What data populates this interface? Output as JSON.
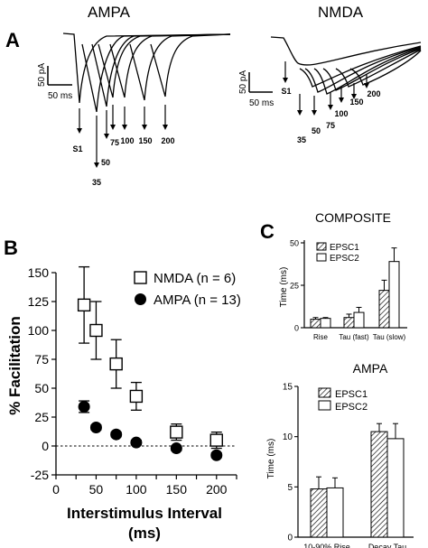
{
  "panel_labels": {
    "a": "A",
    "b": "B",
    "c": "C"
  },
  "panel_a": {
    "ampa": {
      "title": "AMPA",
      "scale_current": "50 pA",
      "scale_time": "50 ms",
      "stim_labels": [
        "S1",
        "35",
        "50",
        "75",
        "100",
        "150",
        "200"
      ]
    },
    "nmda": {
      "title": "NMDA",
      "scale_current": "50 pA",
      "scale_time": "50 ms",
      "stim_labels": [
        "S1",
        "35",
        "50",
        "75",
        "100",
        "150",
        "200"
      ]
    }
  },
  "chart_data": [
    {
      "id": "facilitation",
      "type": "scatter",
      "title": "",
      "xlabel": "Interstimulus Interval (ms)",
      "ylabel": "% Facilitation",
      "xlim": [
        0,
        225
      ],
      "ylim": [
        -25,
        150
      ],
      "xticks": [
        "0",
        "25",
        "50",
        "75",
        "100",
        "125",
        "150",
        "175",
        "200",
        "225"
      ],
      "yticks": [
        "-25",
        "0",
        "25",
        "50",
        "75",
        "100",
        "125",
        "150"
      ],
      "legend": {
        "placement": "top-right"
      },
      "series": [
        {
          "name": "NMDA (n = 6)",
          "marker": "open-square",
          "x": [
            35,
            50,
            75,
            100,
            150,
            200
          ],
          "y": [
            122,
            100,
            71,
            43,
            12,
            5
          ],
          "err": [
            33,
            25,
            21,
            12,
            7,
            7
          ]
        },
        {
          "name": "AMPA (n = 13)",
          "marker": "filled-circle",
          "x": [
            35,
            50,
            75,
            100,
            150,
            200
          ],
          "y": [
            34,
            16,
            10,
            3,
            -2,
            -8
          ],
          "err": [
            5,
            2,
            2,
            2,
            2,
            2
          ]
        }
      ]
    },
    {
      "id": "composite",
      "type": "bar",
      "title": "COMPOSITE",
      "ylabel": "Time (ms)",
      "ylim": [
        0,
        50
      ],
      "yticks": [
        "0",
        "25",
        "50"
      ],
      "categories": [
        "Rise",
        "Tau (fast)",
        "Tau (slow)"
      ],
      "series": [
        {
          "name": "EPSC1",
          "pattern": "hatched",
          "values": [
            5,
            6,
            22
          ],
          "err": [
            1,
            2,
            6
          ]
        },
        {
          "name": "EPSC2",
          "pattern": "open",
          "values": [
            5.5,
            9,
            39
          ],
          "err": [
            0.5,
            3,
            8
          ]
        }
      ]
    },
    {
      "id": "ampa-kinetics",
      "type": "bar",
      "title": "AMPA",
      "ylabel": "Time (ms)",
      "ylim": [
        0,
        15
      ],
      "yticks": [
        "0",
        "5",
        "10",
        "15"
      ],
      "categories": [
        "10-90% Rise",
        "Decay Tau"
      ],
      "series": [
        {
          "name": "EPSC1",
          "pattern": "hatched",
          "values": [
            4.8,
            10.5
          ],
          "err": [
            1.2,
            0.8
          ]
        },
        {
          "name": "EPSC2",
          "pattern": "open",
          "values": [
            4.9,
            9.8
          ],
          "err": [
            1.0,
            1.5
          ]
        }
      ]
    }
  ]
}
